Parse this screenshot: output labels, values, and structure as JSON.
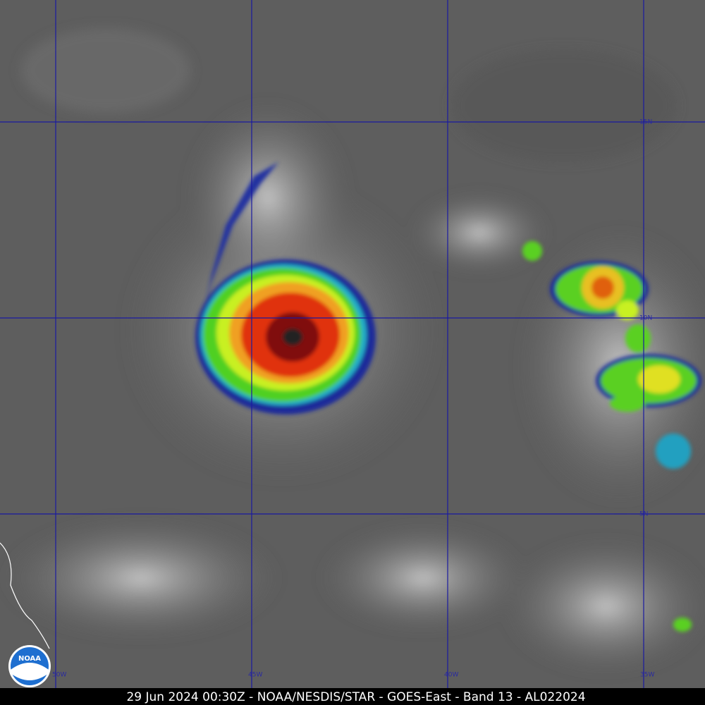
{
  "map": {
    "grid_labels": {
      "latitudes": [
        "15N",
        "10N",
        "5N"
      ],
      "longitudes": [
        "50W",
        "45W",
        "40W",
        "35W"
      ]
    },
    "logo": "NOAA",
    "caption": "29 Jun 2024 00:30Z - NOAA/NESDIS/STAR - GOES-East - Band 13 - AL022024"
  }
}
